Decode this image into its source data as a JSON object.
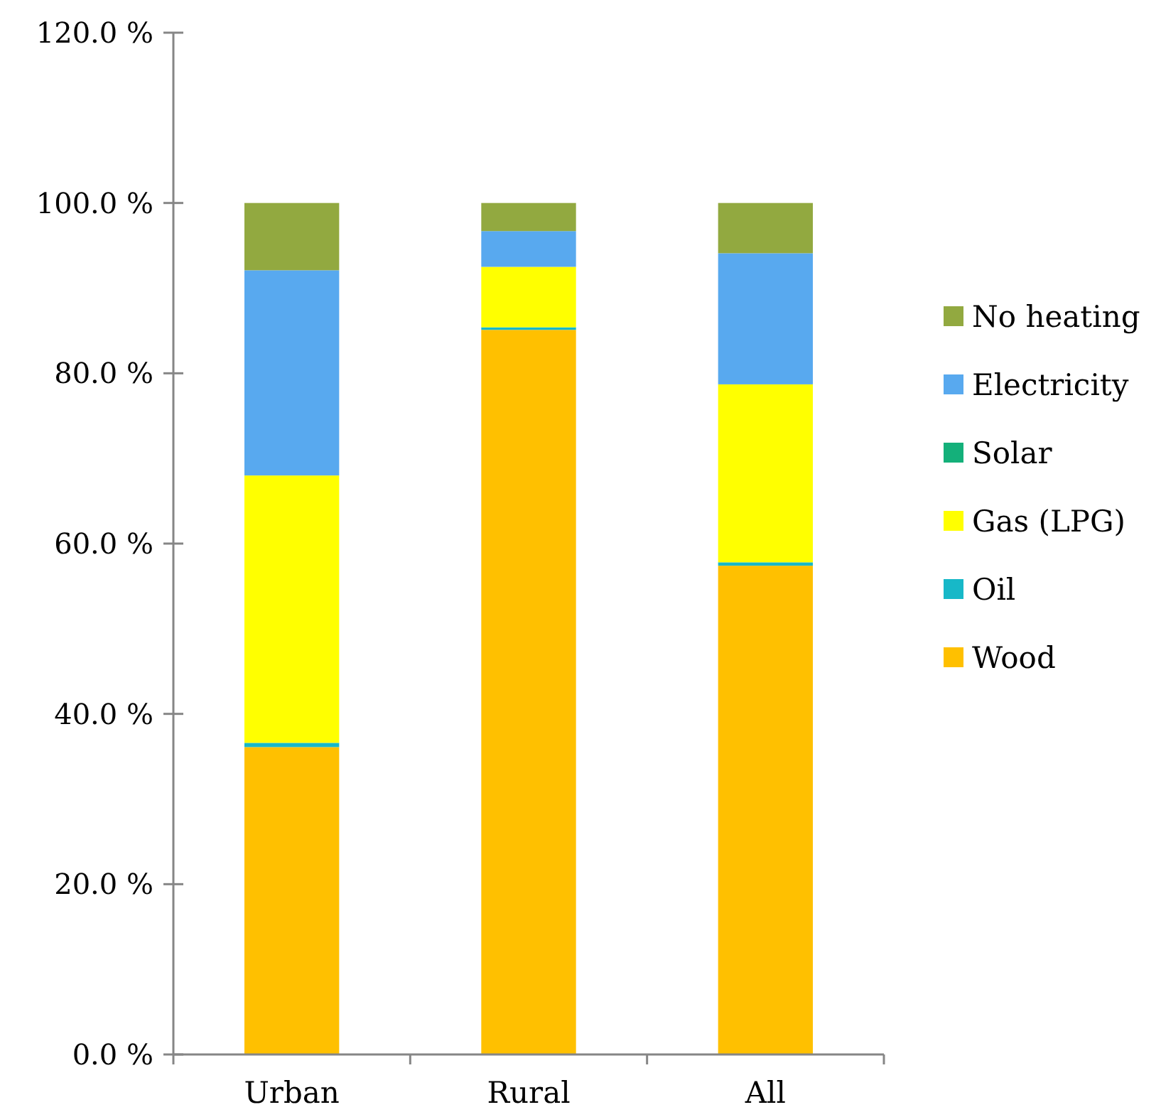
{
  "chart_data": {
    "type": "bar",
    "stacked": true,
    "categories": [
      "Urban",
      "Rural",
      "All"
    ],
    "series": [
      {
        "name": "Wood",
        "color": "#ffc000",
        "values": [
          36.1,
          85.1,
          57.4
        ]
      },
      {
        "name": "Oil",
        "color": "#17b8c8",
        "values": [
          0.5,
          0.3,
          0.4
        ]
      },
      {
        "name": "Gas (LPG)",
        "color": "#ffff00",
        "values": [
          31.4,
          7.1,
          20.9
        ]
      },
      {
        "name": "Solar",
        "color": "#14b07a",
        "values": [
          0,
          0,
          0
        ]
      },
      {
        "name": "Electricity",
        "color": "#58a9ef",
        "values": [
          24.1,
          4.2,
          15.4
        ]
      },
      {
        "name": "No heating",
        "color": "#92a940",
        "values": [
          7.9,
          3.3,
          5.9
        ]
      }
    ],
    "ylim": [
      0,
      120
    ],
    "yticks": [
      {
        "value": 0,
        "label": "0.0 %"
      },
      {
        "value": 20,
        "label": "20.0 %"
      },
      {
        "value": 40,
        "label": "40.0 %"
      },
      {
        "value": 60,
        "label": "60.0 %"
      },
      {
        "value": 80,
        "label": "80.0 %"
      },
      {
        "value": 100,
        "label": "100.0 %"
      },
      {
        "value": 120,
        "label": "120.0 %"
      }
    ],
    "legend": "right",
    "grid": false
  }
}
